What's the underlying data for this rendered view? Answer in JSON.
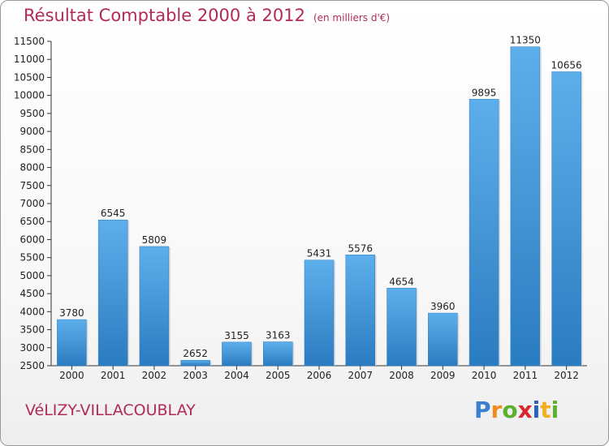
{
  "chart_data": {
    "type": "bar",
    "title": "Résultat Comptable 2000 à 2012",
    "subtitle": "(en milliers d'€)",
    "categories": [
      "2000",
      "2001",
      "2002",
      "2003",
      "2004",
      "2005",
      "2006",
      "2007",
      "2008",
      "2009",
      "2010",
      "2011",
      "2012"
    ],
    "values": [
      3780,
      6545,
      5809,
      2652,
      3155,
      3163,
      5431,
      5576,
      4654,
      3960,
      9895,
      11350,
      10656
    ],
    "value_labels": [
      "3780",
      "6545",
      "5809",
      "2652",
      "3155",
      "3163",
      "5431",
      "5576",
      "4654",
      "3960",
      "9895",
      "11350",
      "10656"
    ],
    "ylim": [
      2500,
      11500
    ],
    "yticks": [
      "2500",
      "3000",
      "3500",
      "4000",
      "4500",
      "5000",
      "5500",
      "6000",
      "6500",
      "7000",
      "7500",
      "8000",
      "8500",
      "9000",
      "9500",
      "10000",
      "10500",
      "11000",
      "11500"
    ],
    "xlabel": "",
    "ylabel": "",
    "grid": false,
    "bar_color": "#3a8fd6"
  },
  "footer": {
    "city": "VéLIZY-VILLACOUBLAY",
    "logo_text": "Proxiti",
    "logo_letters": [
      "P",
      "r",
      "o",
      "x",
      "i",
      "t",
      "i"
    ],
    "logo_colors": [
      "#3a7fd0",
      "#f08c1e",
      "#5cb030",
      "#d9272e",
      "#2a62b8",
      "#f0b020",
      "#5cb030"
    ]
  }
}
